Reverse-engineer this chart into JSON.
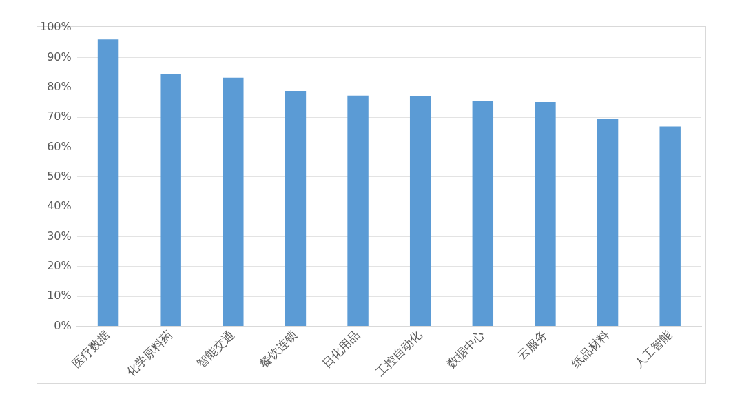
{
  "chart_data": {
    "type": "bar",
    "categories": [
      "医疗数据",
      "化学原料药",
      "智能交通",
      "餐饮连锁",
      "日化用品",
      "工控自动化",
      "数据中心",
      "云服务",
      "纸品材料",
      "人工智能"
    ],
    "values": [
      96,
      84.3,
      83.2,
      78.8,
      77.2,
      77,
      75.3,
      75.1,
      69.5,
      66.9
    ],
    "color": "#5b9bd5",
    "ylim": [
      0,
      100
    ],
    "yticks": [
      {
        "value": 0,
        "label": "0%"
      },
      {
        "value": 10,
        "label": "10%"
      },
      {
        "value": 20,
        "label": "20%"
      },
      {
        "value": 30,
        "label": "30%"
      },
      {
        "value": 40,
        "label": "40%"
      },
      {
        "value": 50,
        "label": "50%"
      },
      {
        "value": 60,
        "label": "60%"
      },
      {
        "value": 70,
        "label": "70%"
      },
      {
        "value": 80,
        "label": "80%"
      },
      {
        "value": 90,
        "label": "90%"
      },
      {
        "value": 100,
        "label": "100%"
      }
    ],
    "grid": "y",
    "legend": false
  }
}
